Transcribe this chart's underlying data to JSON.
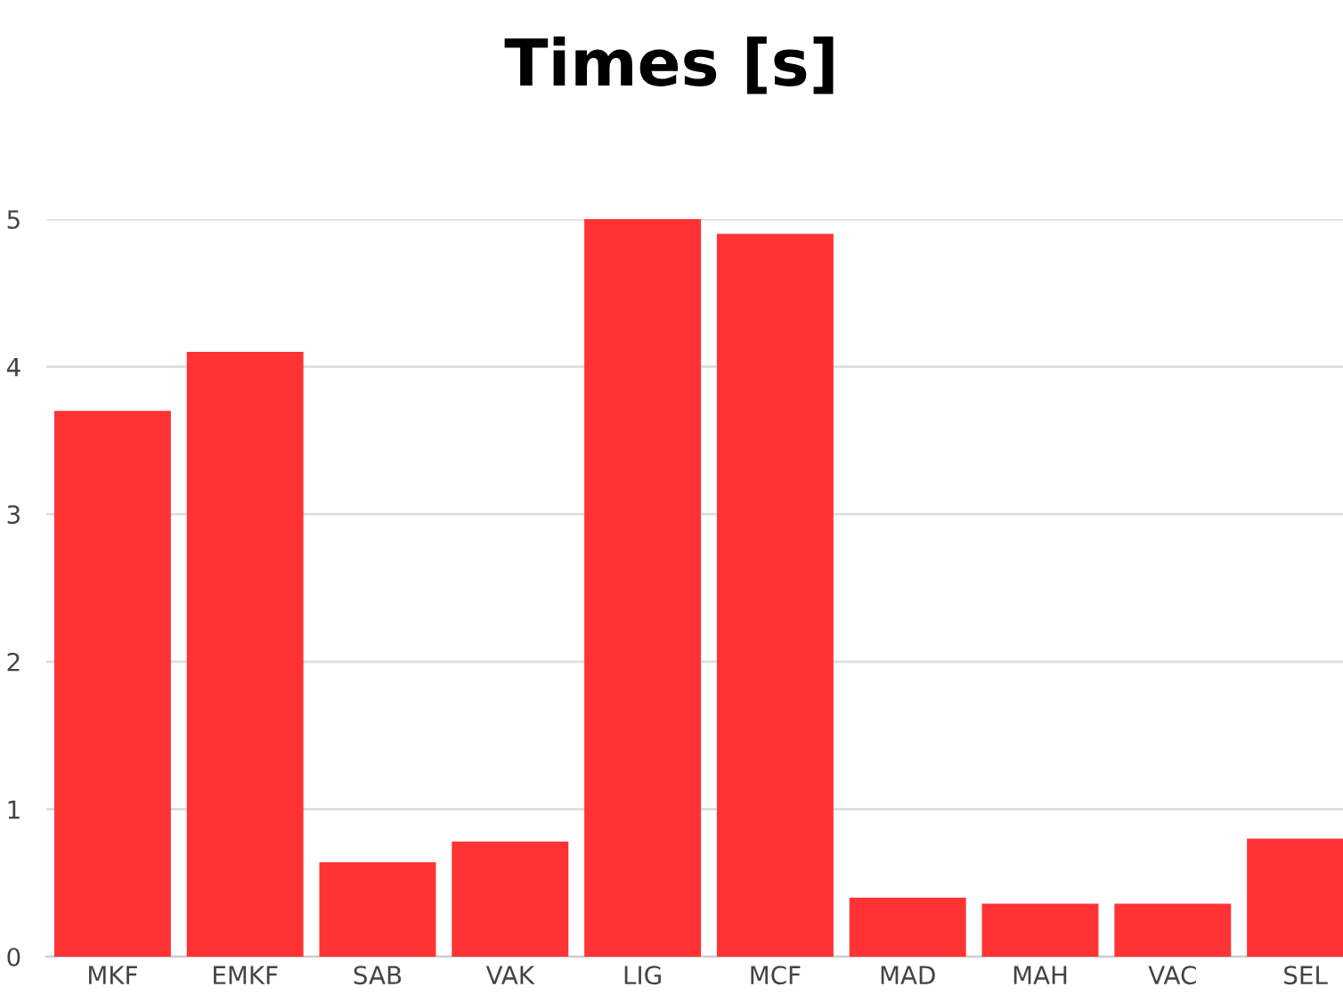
{
  "chart_data": {
    "type": "bar",
    "title": "Times [s]",
    "categories": [
      "MKF",
      "EMKF",
      "SAB",
      "VAK",
      "LIG",
      "MCF",
      "MAD",
      "MAH",
      "VAC",
      "SEL"
    ],
    "values": [
      3.7,
      4.1,
      0.64,
      0.78,
      5.0,
      4.9,
      0.4,
      0.36,
      0.36,
      0.8
    ],
    "color": "#ff3333",
    "ylim": [
      0,
      5
    ],
    "yticks": [
      0,
      1,
      2,
      3,
      4,
      5
    ],
    "grid": "y"
  }
}
